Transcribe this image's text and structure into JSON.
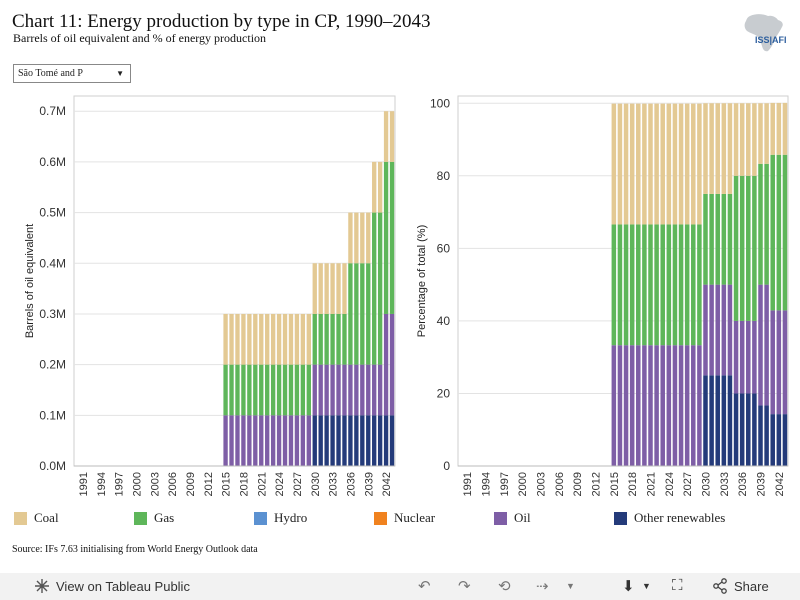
{
  "header": {
    "title": "Chart 11: Energy production by type in CP, 1990–2043",
    "subtitle": "Barrels of oil equivalent and % of energy production",
    "logo_text": "ISS|AFI"
  },
  "filter": {
    "selected": "São Tomé and P"
  },
  "colors": {
    "Coal": "#e3c993",
    "Gas": "#5eb65a",
    "Hydro": "#5b91d1",
    "Nuclear": "#f0821f",
    "Oil": "#7e5ea6",
    "Other renewables": "#243b7a"
  },
  "legend": [
    "Coal",
    "Gas",
    "Hydro",
    "Nuclear",
    "Oil",
    "Other renewables"
  ],
  "source": "Source: IFs 7.63 initialising from World Energy Outlook data",
  "footer": {
    "view_label": "View on Tableau Public",
    "share_label": "Share"
  },
  "chart_data": [
    {
      "type": "bar",
      "stacked": true,
      "ylabel": "Barrels of oil equivalent",
      "ylim": [
        0,
        0.73
      ],
      "yticks": [
        0,
        0.1,
        0.2,
        0.3,
        0.4,
        0.5,
        0.6,
        0.7
      ],
      "ytick_labels": [
        "0.0M",
        "0.1M",
        "0.2M",
        "0.3M",
        "0.4M",
        "0.5M",
        "0.6M",
        "0.7M"
      ],
      "x_start": 1990,
      "x_end": 2043,
      "xtick_labels": [
        "1991",
        "1994",
        "1997",
        "2000",
        "2003",
        "2006",
        "2009",
        "2012",
        "2015",
        "2018",
        "2021",
        "2024",
        "2027",
        "2030",
        "2033",
        "2036",
        "2039",
        "2042"
      ],
      "segments": [
        {
          "from": 2015,
          "to": 2029,
          "values": {
            "Oil": 0.1,
            "Gas": 0.1,
            "Coal": 0.1
          }
        },
        {
          "from": 2030,
          "to": 2032,
          "values": {
            "Other renewables": 0.1,
            "Oil": 0.1,
            "Gas": 0.1,
            "Coal": 0.1
          }
        },
        {
          "from": 2033,
          "to": 2035,
          "values": {
            "Other renewables": 0.1,
            "Oil": 0.1,
            "Gas": 0.1,
            "Coal": 0.1
          }
        },
        {
          "from": 2036,
          "to": 2039,
          "values": {
            "Other renewables": 0.1,
            "Oil": 0.1,
            "Gas": 0.2,
            "Coal": 0.1
          }
        },
        {
          "from": 2040,
          "to": 2041,
          "values": {
            "Other renewables": 0.1,
            "Oil": 0.1,
            "Gas": 0.3,
            "Coal": 0.1
          }
        },
        {
          "from": 2042,
          "to": 2043,
          "values": {
            "Other renewables": 0.1,
            "Oil": 0.2,
            "Gas": 0.3,
            "Coal": 0.1
          }
        }
      ]
    },
    {
      "type": "bar",
      "stacked": true,
      "ylabel": "Percentage of total (%)",
      "ylim": [
        0,
        102
      ],
      "yticks": [
        0,
        20,
        40,
        60,
        80,
        100
      ],
      "ytick_labels": [
        "0",
        "20",
        "40",
        "60",
        "80",
        "100"
      ],
      "x_start": 1990,
      "x_end": 2043,
      "xtick_labels": [
        "1991",
        "1994",
        "1997",
        "2000",
        "2003",
        "2006",
        "2009",
        "2012",
        "2015",
        "2018",
        "2021",
        "2024",
        "2027",
        "2030",
        "2033",
        "2036",
        "2039",
        "2042"
      ],
      "segments": [
        {
          "from": 2015,
          "to": 2029,
          "values": {
            "Oil": 33.3,
            "Gas": 33.3,
            "Coal": 33.3
          }
        },
        {
          "from": 2030,
          "to": 2034,
          "values": {
            "Other renewables": 25,
            "Oil": 25,
            "Gas": 25,
            "Coal": 25
          }
        },
        {
          "from": 2035,
          "to": 2038,
          "values": {
            "Other renewables": 20,
            "Oil": 20,
            "Gas": 40,
            "Coal": 20
          }
        },
        {
          "from": 2039,
          "to": 2040,
          "values": {
            "Other renewables": 16.7,
            "Oil": 33.3,
            "Gas": 33.3,
            "Coal": 16.7
          }
        },
        {
          "from": 2041,
          "to": 2043,
          "values": {
            "Other renewables": 14.3,
            "Oil": 28.6,
            "Gas": 42.9,
            "Coal": 14.3
          }
        }
      ]
    }
  ]
}
